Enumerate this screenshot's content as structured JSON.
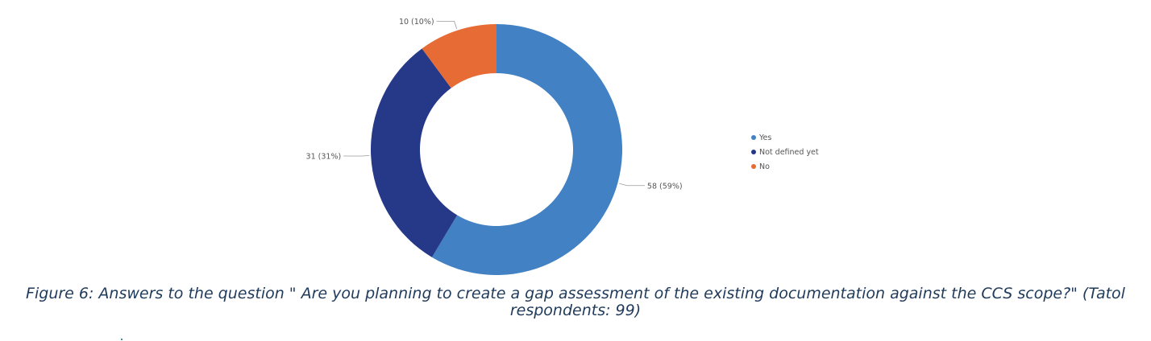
{
  "chart_data": {
    "type": "pie",
    "donut": true,
    "slices": [
      {
        "label": "Yes",
        "value": 58,
        "data_label": "58 (59%)",
        "color": "#4281c3"
      },
      {
        "label": "Not defined yet",
        "value": 31,
        "data_label": "31 (31%)",
        "color": "#263888"
      },
      {
        "label": "No",
        "value": 10,
        "data_label": "10 (10%)",
        "color": "#e66b35"
      }
    ],
    "legend_position": "right"
  },
  "caption": {
    "line1": "Figure 6: Answers to the question  \" Are you planning to create a gap assessment of the existing documentation against the CCS scope?\" (Tatol",
    "line2": "respondents: 99)"
  }
}
